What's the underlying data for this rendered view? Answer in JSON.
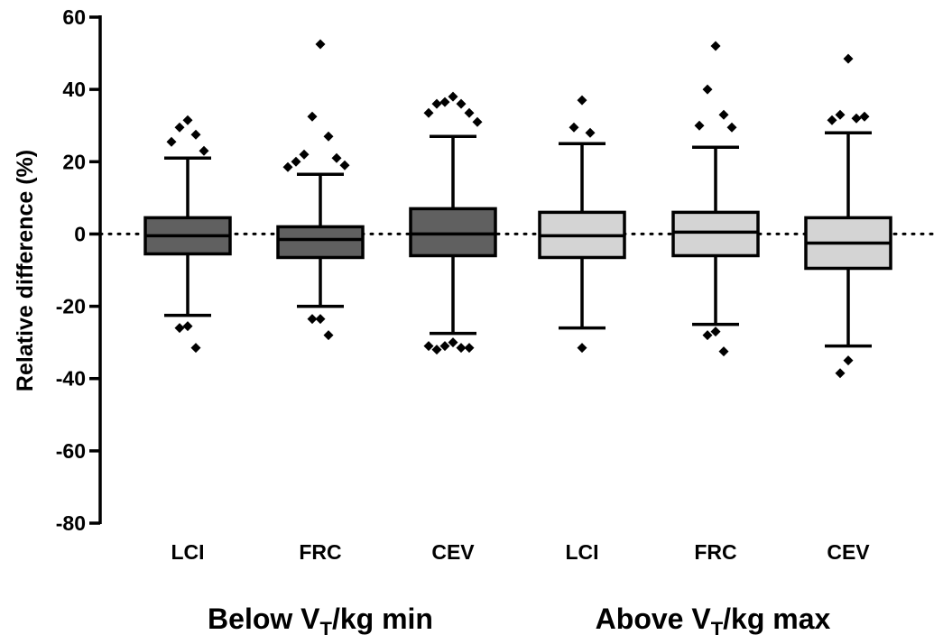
{
  "chart_data": {
    "type": "boxplot",
    "ylabel": "Relative difference (%)",
    "ylim": [
      -80,
      60
    ],
    "yticks": [
      60,
      40,
      20,
      0,
      -20,
      -40,
      -60,
      -80
    ],
    "reference_line": 0,
    "groups": [
      {
        "label_main": "Below V",
        "label_sub": "T",
        "label_tail": "/kg min",
        "fill": "#606060"
      },
      {
        "label_main": "Above V",
        "label_sub": "T",
        "label_tail": "/kg max",
        "fill": "#d4d4d4"
      }
    ],
    "boxes": [
      {
        "category": "LCI",
        "group": 0,
        "whisker_low": -22.5,
        "q1": -5.5,
        "median": -0.5,
        "q3": 4.5,
        "whisker_high": 21,
        "outliers": [
          31.5,
          29.5,
          27.5,
          25.5,
          23,
          -25.5,
          -26,
          -31.5
        ]
      },
      {
        "category": "FRC",
        "group": 0,
        "whisker_low": -20,
        "q1": -6.5,
        "median": -1.5,
        "q3": 2,
        "whisker_high": 16.5,
        "outliers": [
          52.5,
          32.5,
          27,
          22,
          21,
          20,
          19,
          18.5,
          -23.5,
          -23.5,
          -28
        ]
      },
      {
        "category": "CEV",
        "group": 0,
        "whisker_low": -27.5,
        "q1": -6,
        "median": 0,
        "q3": 7,
        "whisker_high": 27,
        "outliers": [
          38,
          36.5,
          36,
          36,
          33.5,
          33.5,
          31,
          -30,
          -31,
          -31.5,
          -32,
          -31.5,
          -31
        ]
      },
      {
        "category": "LCI",
        "group": 1,
        "whisker_low": -26,
        "q1": -6.5,
        "median": -0.5,
        "q3": 6,
        "whisker_high": 25,
        "outliers": [
          37,
          29.5,
          28,
          -31.5
        ]
      },
      {
        "category": "FRC",
        "group": 1,
        "whisker_low": -25,
        "q1": -6,
        "median": 0.5,
        "q3": 6,
        "whisker_high": 24,
        "outliers": [
          52,
          40,
          33,
          30,
          29.5,
          -27,
          -28,
          -32.5
        ]
      },
      {
        "category": "CEV",
        "group": 1,
        "whisker_low": -31,
        "q1": -9.5,
        "median": -2.5,
        "q3": 4.5,
        "whisker_high": 28,
        "outliers": [
          48.5,
          33,
          32,
          31.5,
          32.5,
          -35,
          -38.5
        ]
      }
    ]
  }
}
